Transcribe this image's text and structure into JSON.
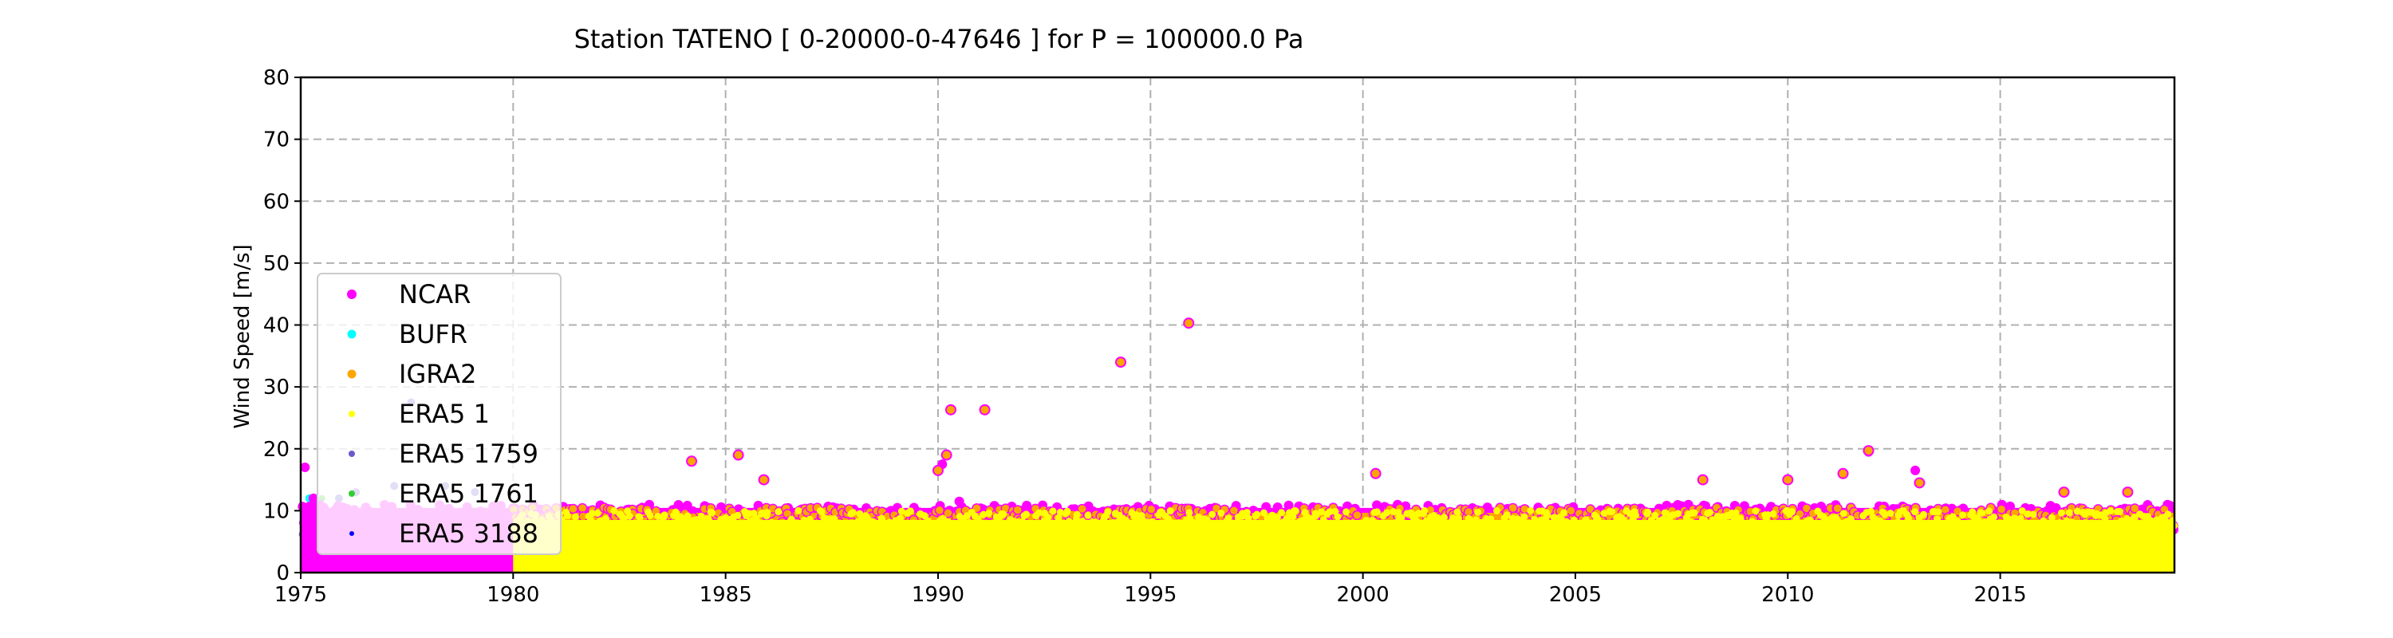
{
  "chart_data": {
    "type": "scatter",
    "title": "Station  TATENO [ 0-20000-0-47646 ]  for P = 100000.0 Pa",
    "xlabel": "",
    "ylabel": "Wind Speed [m/s]",
    "xlim": [
      1975,
      2019.1
    ],
    "ylim": [
      0,
      80
    ],
    "xticks": [
      1975,
      1980,
      1985,
      1990,
      1995,
      2000,
      2005,
      2010,
      2015
    ],
    "yticks": [
      0,
      10,
      20,
      30,
      40,
      50,
      60,
      70,
      80
    ],
    "grid": true,
    "legend_position": "lower-left",
    "series": [
      {
        "name": "NCAR",
        "color": "#ff00ff",
        "x_range": [
          1975,
          2019.1
        ],
        "band_max": 11,
        "points": [
          [
            1975.1,
            17
          ],
          [
            1975.3,
            12
          ],
          [
            1990.1,
            17.5
          ],
          [
            1990.5,
            11.5
          ],
          [
            2011.9,
            19.5
          ],
          [
            2013.0,
            16.5
          ],
          [
            2019.0,
            10.8
          ]
        ]
      },
      {
        "name": "BUFR",
        "color": "#00ffff",
        "x_range": [
          1975,
          1975.6
        ],
        "band_max": 12,
        "points": [
          [
            1975.2,
            12
          ],
          [
            1975.4,
            11
          ]
        ]
      },
      {
        "name": "IGRA2",
        "color": "#ffa500",
        "x_range": [
          1980,
          2019.1
        ],
        "band_max": 10.5,
        "points": [
          [
            1984.2,
            18
          ],
          [
            1985.3,
            19
          ],
          [
            1985.9,
            15
          ],
          [
            1990.0,
            16.5
          ],
          [
            1990.2,
            19
          ],
          [
            1990.3,
            26.3
          ],
          [
            1991.1,
            26.3
          ],
          [
            1994.3,
            34
          ],
          [
            1995.9,
            40.3
          ],
          [
            2000.3,
            16
          ],
          [
            2008.0,
            15
          ],
          [
            2010.0,
            15
          ],
          [
            2011.3,
            16
          ],
          [
            2011.9,
            19.7
          ],
          [
            2013.1,
            14.5
          ],
          [
            2016.5,
            13
          ],
          [
            2018.0,
            13
          ]
        ]
      },
      {
        "name": "ERA5 1",
        "color": "#ffff00",
        "x_range": [
          1980,
          2019.1
        ],
        "band_max": 10,
        "points": []
      },
      {
        "name": "ERA5 1759",
        "color": "#6a5acd",
        "x_range": [
          1975,
          1980
        ],
        "band_max": 9,
        "points": [
          [
            1975.9,
            12
          ],
          [
            1976.3,
            13
          ],
          [
            1977.2,
            14
          ],
          [
            1977.6,
            27.5
          ],
          [
            1978.4,
            14
          ],
          [
            1979.1,
            13
          ]
        ]
      },
      {
        "name": "ERA5 1761",
        "color": "#32cd32",
        "x_range": [
          1975,
          1976
        ],
        "band_max": 6,
        "points": [
          [
            1975.5,
            12
          ]
        ]
      },
      {
        "name": "ERA5 3188",
        "color": "#0000ff",
        "x_range": [
          1975,
          1980
        ],
        "band_max": 5,
        "points": []
      }
    ]
  }
}
